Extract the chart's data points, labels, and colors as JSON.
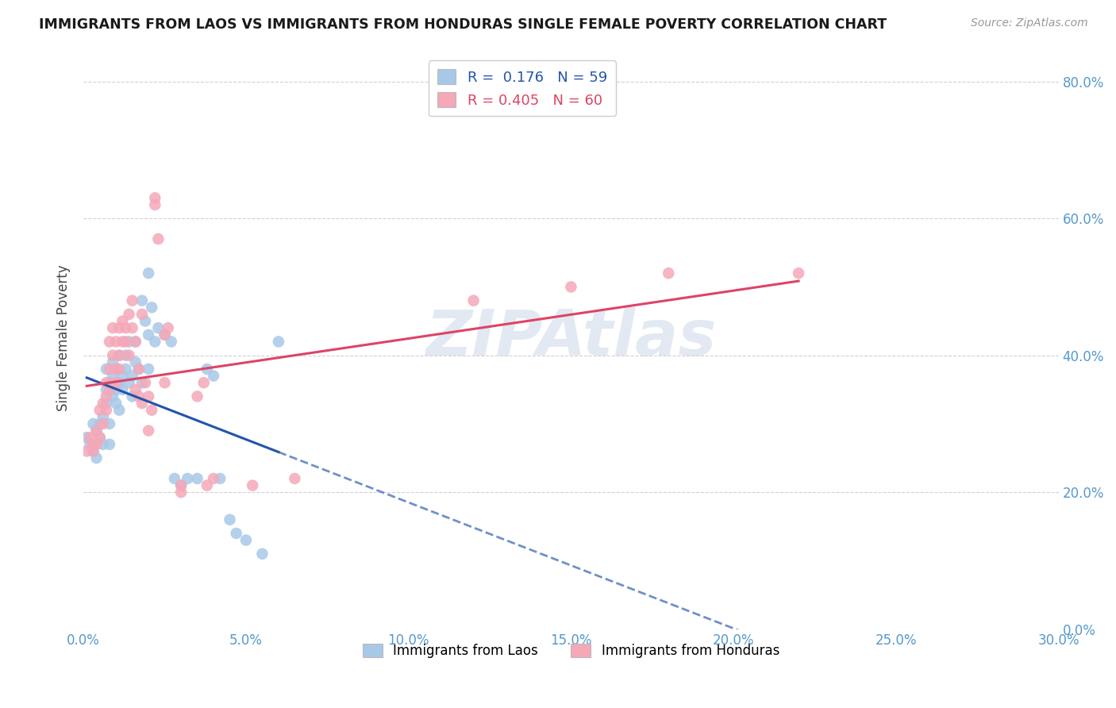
{
  "title": "IMMIGRANTS FROM LAOS VS IMMIGRANTS FROM HONDURAS SINGLE FEMALE POVERTY CORRELATION CHART",
  "source": "Source: ZipAtlas.com",
  "ylabel": "Single Female Poverty",
  "r_laos": 0.176,
  "n_laos": 59,
  "r_honduras": 0.405,
  "n_honduras": 60,
  "laos_color": "#a8c8e8",
  "honduras_color": "#f4a8b8",
  "laos_line_color": "#2255aa",
  "honduras_line_color": "#dd4466",
  "laos_scatter": [
    [
      0.1,
      28
    ],
    [
      0.2,
      27
    ],
    [
      0.3,
      26
    ],
    [
      0.3,
      30
    ],
    [
      0.4,
      25
    ],
    [
      0.4,
      29
    ],
    [
      0.5,
      30
    ],
    [
      0.5,
      28
    ],
    [
      0.6,
      31
    ],
    [
      0.6,
      27
    ],
    [
      0.7,
      35
    ],
    [
      0.7,
      38
    ],
    [
      0.7,
      33
    ],
    [
      0.8,
      36
    ],
    [
      0.8,
      30
    ],
    [
      0.8,
      27
    ],
    [
      0.9,
      37
    ],
    [
      0.9,
      39
    ],
    [
      0.9,
      34
    ],
    [
      1.0,
      38
    ],
    [
      1.0,
      35
    ],
    [
      1.0,
      33
    ],
    [
      1.1,
      40
    ],
    [
      1.1,
      36
    ],
    [
      1.1,
      32
    ],
    [
      1.2,
      37
    ],
    [
      1.2,
      35
    ],
    [
      1.3,
      40
    ],
    [
      1.3,
      38
    ],
    [
      1.4,
      42
    ],
    [
      1.4,
      36
    ],
    [
      1.5,
      37
    ],
    [
      1.5,
      34
    ],
    [
      1.6,
      39
    ],
    [
      1.6,
      42
    ],
    [
      1.7,
      38
    ],
    [
      1.8,
      36
    ],
    [
      1.8,
      48
    ],
    [
      1.9,
      45
    ],
    [
      2.0,
      43
    ],
    [
      2.0,
      38
    ],
    [
      2.0,
      52
    ],
    [
      2.1,
      47
    ],
    [
      2.2,
      42
    ],
    [
      2.3,
      44
    ],
    [
      2.5,
      43
    ],
    [
      2.7,
      42
    ],
    [
      2.8,
      22
    ],
    [
      3.0,
      21
    ],
    [
      3.2,
      22
    ],
    [
      3.5,
      22
    ],
    [
      3.8,
      38
    ],
    [
      4.0,
      37
    ],
    [
      4.2,
      22
    ],
    [
      4.5,
      16
    ],
    [
      4.7,
      14
    ],
    [
      5.0,
      13
    ],
    [
      5.5,
      11
    ],
    [
      6.0,
      42
    ]
  ],
  "honduras_scatter": [
    [
      0.1,
      26
    ],
    [
      0.2,
      28
    ],
    [
      0.3,
      27
    ],
    [
      0.3,
      26
    ],
    [
      0.4,
      27
    ],
    [
      0.4,
      29
    ],
    [
      0.5,
      28
    ],
    [
      0.5,
      32
    ],
    [
      0.6,
      30
    ],
    [
      0.6,
      33
    ],
    [
      0.7,
      34
    ],
    [
      0.7,
      36
    ],
    [
      0.7,
      32
    ],
    [
      0.8,
      35
    ],
    [
      0.8,
      38
    ],
    [
      0.8,
      42
    ],
    [
      0.9,
      44
    ],
    [
      0.9,
      40
    ],
    [
      1.0,
      38
    ],
    [
      1.0,
      36
    ],
    [
      1.0,
      42
    ],
    [
      1.1,
      44
    ],
    [
      1.1,
      40
    ],
    [
      1.1,
      38
    ],
    [
      1.2,
      42
    ],
    [
      1.2,
      45
    ],
    [
      1.3,
      44
    ],
    [
      1.3,
      42
    ],
    [
      1.4,
      46
    ],
    [
      1.4,
      40
    ],
    [
      1.5,
      48
    ],
    [
      1.5,
      44
    ],
    [
      1.6,
      42
    ],
    [
      1.6,
      35
    ],
    [
      1.7,
      38
    ],
    [
      1.7,
      34
    ],
    [
      1.8,
      46
    ],
    [
      1.8,
      33
    ],
    [
      1.9,
      36
    ],
    [
      2.0,
      34
    ],
    [
      2.0,
      29
    ],
    [
      2.1,
      32
    ],
    [
      2.2,
      62
    ],
    [
      2.2,
      63
    ],
    [
      2.3,
      57
    ],
    [
      2.5,
      43
    ],
    [
      2.5,
      36
    ],
    [
      2.6,
      44
    ],
    [
      3.0,
      21
    ],
    [
      3.0,
      20
    ],
    [
      3.5,
      34
    ],
    [
      3.7,
      36
    ],
    [
      3.8,
      21
    ],
    [
      4.0,
      22
    ],
    [
      5.2,
      21
    ],
    [
      6.5,
      22
    ],
    [
      12.0,
      48
    ],
    [
      15.0,
      50
    ],
    [
      18.0,
      52
    ],
    [
      22.0,
      52
    ]
  ],
  "xlim": [
    0.0,
    30.0
  ],
  "ylim": [
    0.0,
    85.0
  ],
  "x_tick_vals": [
    0.0,
    5.0,
    10.0,
    15.0,
    20.0,
    25.0,
    30.0
  ],
  "y_tick_vals": [
    0.0,
    20.0,
    40.0,
    60.0,
    80.0
  ],
  "watermark": "ZIPAtlas",
  "figsize": [
    14.06,
    8.92
  ],
  "dpi": 100
}
